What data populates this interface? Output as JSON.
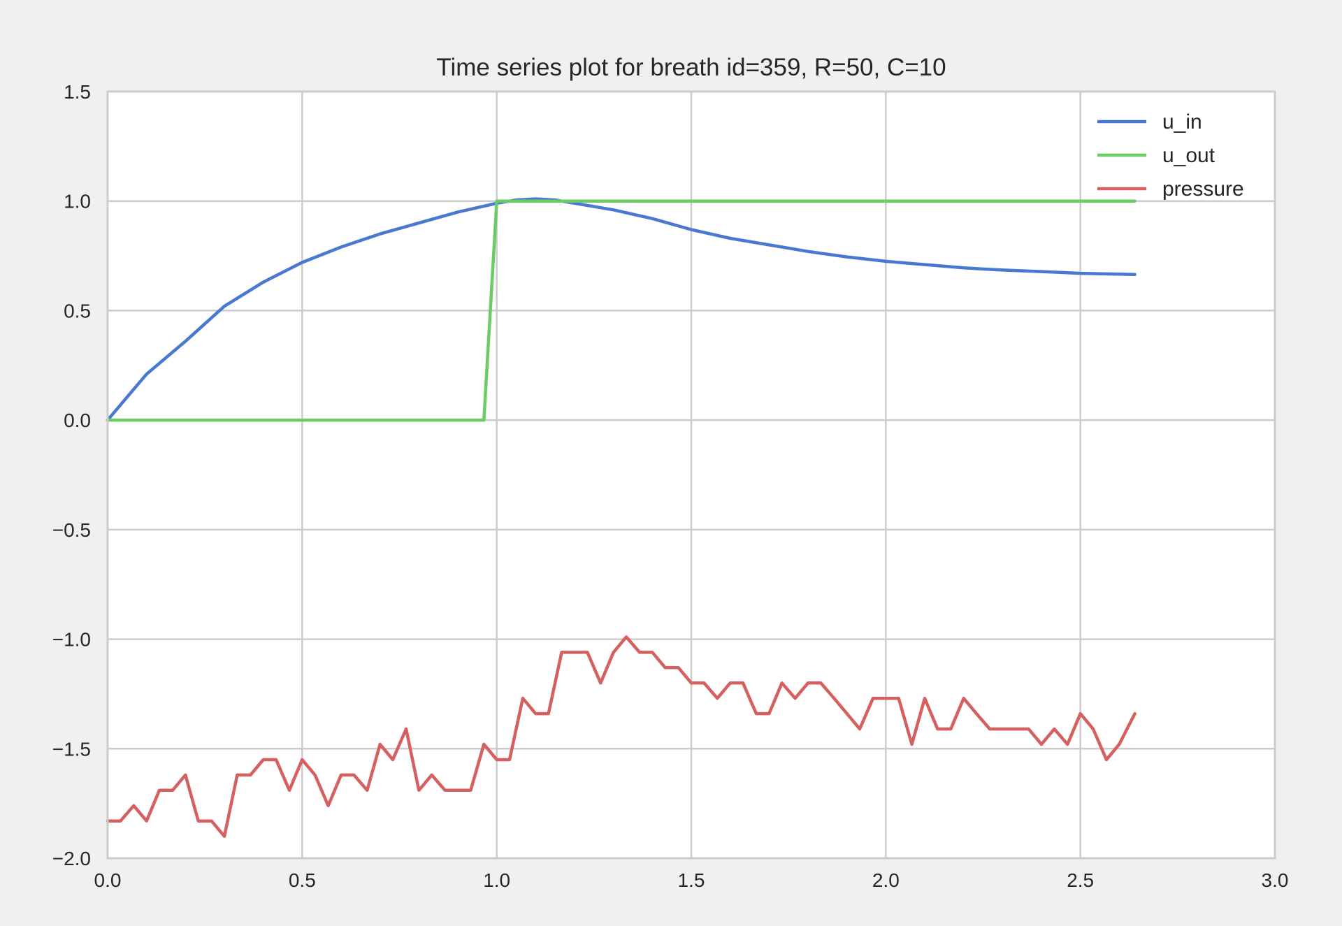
{
  "chart_data": {
    "type": "line",
    "title": "Time series plot for breath id=359, R=50, C=10",
    "xlabel": "",
    "ylabel": "",
    "xlim": [
      0.0,
      3.0
    ],
    "ylim": [
      -2.0,
      1.5
    ],
    "xticks": [
      "0.0",
      "0.5",
      "1.0",
      "1.5",
      "2.0",
      "2.5",
      "3.0"
    ],
    "yticks": [
      "1.5",
      "1.0",
      "0.5",
      "0.0",
      "−0.5",
      "−1.0",
      "−1.5",
      "−2.0"
    ],
    "grid": true,
    "legend_position": "top-right",
    "series": [
      {
        "name": "u_in",
        "color": "#4878cf",
        "x": [
          0.0,
          0.1,
          0.2,
          0.3,
          0.4,
          0.5,
          0.6,
          0.7,
          0.8,
          0.9,
          1.0,
          1.05,
          1.1,
          1.15,
          1.2,
          1.3,
          1.4,
          1.5,
          1.6,
          1.7,
          1.8,
          1.9,
          2.0,
          2.1,
          2.2,
          2.3,
          2.4,
          2.5,
          2.64
        ],
        "y": [
          0.0,
          0.21,
          0.36,
          0.52,
          0.63,
          0.72,
          0.79,
          0.85,
          0.9,
          0.95,
          0.99,
          1.005,
          1.01,
          1.005,
          0.99,
          0.96,
          0.92,
          0.87,
          0.83,
          0.8,
          0.77,
          0.745,
          0.725,
          0.71,
          0.695,
          0.685,
          0.678,
          0.67,
          0.665
        ]
      },
      {
        "name": "u_out",
        "color": "#6acc65",
        "x": [
          0.0,
          0.967,
          1.0,
          2.64
        ],
        "y": [
          0.0,
          0.0,
          1.0,
          1.0
        ]
      },
      {
        "name": "pressure",
        "color": "#d65f5f",
        "x": [
          0.0,
          0.033,
          0.067,
          0.1,
          0.133,
          0.167,
          0.2,
          0.233,
          0.267,
          0.3,
          0.333,
          0.367,
          0.4,
          0.433,
          0.467,
          0.5,
          0.533,
          0.567,
          0.6,
          0.633,
          0.667,
          0.7,
          0.733,
          0.767,
          0.8,
          0.833,
          0.867,
          0.9,
          0.933,
          0.967,
          1.0,
          1.033,
          1.067,
          1.1,
          1.133,
          1.167,
          1.2,
          1.233,
          1.267,
          1.3,
          1.333,
          1.367,
          1.4,
          1.433,
          1.467,
          1.5,
          1.533,
          1.567,
          1.6,
          1.633,
          1.667,
          1.7,
          1.733,
          1.767,
          1.8,
          1.833,
          1.867,
          1.9,
          1.933,
          1.967,
          2.0,
          2.033,
          2.067,
          2.1,
          2.133,
          2.167,
          2.2,
          2.233,
          2.267,
          2.3,
          2.333,
          2.367,
          2.4,
          2.433,
          2.467,
          2.5,
          2.533,
          2.567,
          2.6,
          2.64
        ],
        "y": [
          -1.83,
          -1.83,
          -1.76,
          -1.83,
          -1.69,
          -1.69,
          -1.62,
          -1.83,
          -1.83,
          -1.9,
          -1.62,
          -1.62,
          -1.55,
          -1.55,
          -1.69,
          -1.55,
          -1.62,
          -1.76,
          -1.62,
          -1.62,
          -1.69,
          -1.48,
          -1.55,
          -1.41,
          -1.69,
          -1.62,
          -1.69,
          -1.69,
          -1.69,
          -1.48,
          -1.55,
          -1.55,
          -1.27,
          -1.34,
          -1.34,
          -1.06,
          -1.06,
          -1.06,
          -1.2,
          -1.06,
          -0.99,
          -1.06,
          -1.06,
          -1.13,
          -1.13,
          -1.2,
          -1.2,
          -1.27,
          -1.2,
          -1.2,
          -1.34,
          -1.34,
          -1.2,
          -1.27,
          -1.2,
          -1.2,
          -1.27,
          -1.34,
          -1.41,
          -1.27,
          -1.27,
          -1.27,
          -1.48,
          -1.27,
          -1.41,
          -1.41,
          -1.27,
          -1.34,
          -1.41,
          -1.41,
          -1.41,
          -1.41,
          -1.48,
          -1.41,
          -1.48,
          -1.34,
          -1.41,
          -1.55,
          -1.48,
          -1.34
        ]
      }
    ]
  }
}
